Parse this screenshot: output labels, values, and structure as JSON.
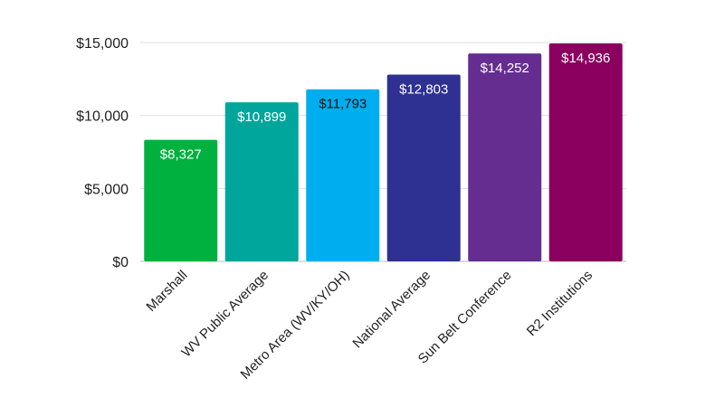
{
  "chart_data": {
    "type": "bar",
    "title": "",
    "xlabel": "",
    "ylabel": "",
    "categories": [
      "Marshall",
      "WV Public Average",
      "Metro Area (WV/KY/OH)",
      "National Average",
      "Sun Belt Conference",
      "R2 Institutions"
    ],
    "values": [
      8327,
      10899,
      11793,
      12803,
      14252,
      14936
    ],
    "data_labels": [
      "$8,327",
      "$10,899",
      "$11,793",
      "$12,803",
      "$14,252",
      "$14,936"
    ],
    "colors": [
      "#00b140",
      "#00a69c",
      "#00aeef",
      "#2e3192",
      "#662d91",
      "#8b005e"
    ],
    "label_colors": [
      "#ffffff",
      "#ffffff",
      "#111111",
      "#ffffff",
      "#ffffff",
      "#ffffff"
    ],
    "ylim": [
      0,
      15000
    ],
    "yticks": [
      0,
      5000,
      10000,
      15000
    ],
    "ytick_labels": [
      "$0",
      "$5,000",
      "$10,000",
      "$15,000"
    ],
    "grid": true,
    "gridline_color": "#dddddd"
  }
}
